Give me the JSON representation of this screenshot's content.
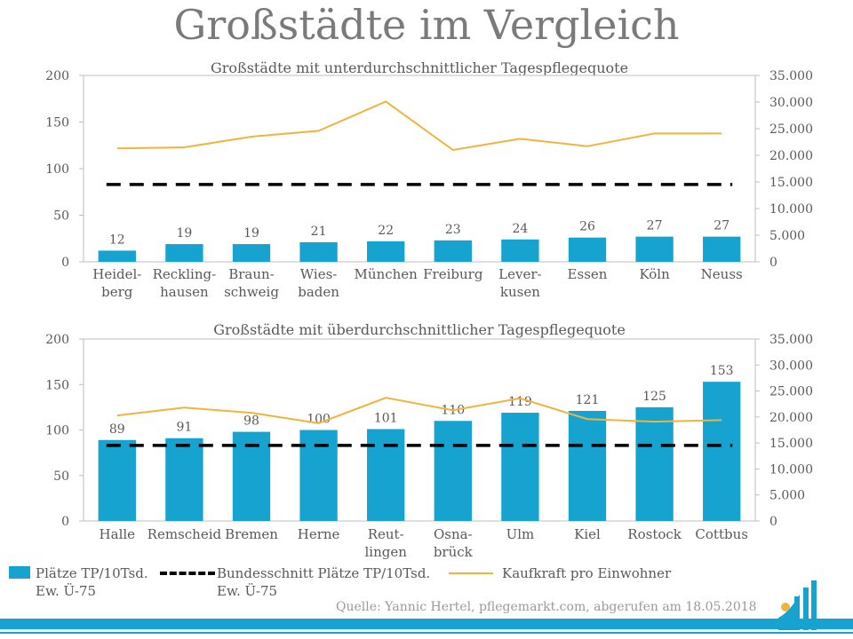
{
  "title": "Großstädte im Vergleich",
  "chart_data": [
    {
      "type": "bar",
      "title": "Großstädte mit unterdurchschnittlicher Tagespflegequote",
      "categories": [
        [
          "Heidel-",
          "berg"
        ],
        [
          "Reckling-",
          "hausen"
        ],
        [
          "Braun-",
          "schweig"
        ],
        [
          "Wies-",
          "baden"
        ],
        [
          "München"
        ],
        [
          "Freiburg"
        ],
        [
          "Lever-",
          "kusen"
        ],
        [
          "Essen"
        ],
        [
          "Köln"
        ],
        [
          "Neuss"
        ]
      ],
      "ylim": [
        0,
        200
      ],
      "yticks": [
        "0",
        "50",
        "100",
        "150",
        "200"
      ],
      "y2lim": [
        0,
        35000
      ],
      "y2ticks": [
        "0",
        "5.000",
        "10.000",
        "15.000",
        "20.000",
        "25.000",
        "30.000",
        "35.000"
      ],
      "series": [
        {
          "name": "Plätze TP/10Tsd. Ew. Ü-75",
          "kind": "bar",
          "color": "#16a3d0",
          "values": [
            12,
            19,
            19,
            21,
            22,
            23,
            24,
            26,
            27,
            27
          ]
        },
        {
          "name": "Bundesschnitt Plätze TP/10Tsd. Ew. Ü-75",
          "kind": "dashed-line",
          "color": "#000000",
          "values": [
            83,
            83,
            83,
            83,
            83,
            83,
            83,
            83,
            83,
            83
          ]
        },
        {
          "name": "Kaufkraft pro Einwohner",
          "kind": "line",
          "axis": "right",
          "color": "#f0b43c",
          "values": [
            21300,
            21500,
            23500,
            24600,
            30100,
            21000,
            23100,
            21700,
            24100,
            24100
          ]
        }
      ]
    },
    {
      "type": "bar",
      "title": "Großstädte mit überdurchschnittlicher Tagespflegequote",
      "categories": [
        [
          "Halle"
        ],
        [
          "Remscheid"
        ],
        [
          "Bremen"
        ],
        [
          "Herne"
        ],
        [
          "Reut-",
          "lingen"
        ],
        [
          "Osna-",
          "brück"
        ],
        [
          "Ulm"
        ],
        [
          "Kiel"
        ],
        [
          "Rostock"
        ],
        [
          "Cottbus"
        ]
      ],
      "ylim": [
        0,
        200
      ],
      "yticks": [
        "0",
        "50",
        "100",
        "150",
        "200"
      ],
      "y2lim": [
        0,
        35000
      ],
      "y2ticks": [
        "0",
        "5.000",
        "10.000",
        "15.000",
        "20.000",
        "25.000",
        "30.000",
        "35.000"
      ],
      "series": [
        {
          "name": "Plätze TP/10Tsd. Ew. Ü-75",
          "kind": "bar",
          "color": "#16a3d0",
          "values": [
            89,
            91,
            98,
            100,
            101,
            110,
            119,
            121,
            125,
            153
          ]
        },
        {
          "name": "Bundesschnitt Plätze TP/10Tsd. Ew. Ü-75",
          "kind": "dashed-line",
          "color": "#000000",
          "values": [
            83,
            83,
            83,
            83,
            83,
            83,
            83,
            83,
            83,
            83
          ]
        },
        {
          "name": "Kaufkraft pro Einwohner",
          "kind": "line",
          "axis": "right",
          "color": "#f0b43c",
          "values": [
            20300,
            21800,
            20800,
            18800,
            23700,
            21300,
            23600,
            19600,
            19100,
            19400
          ]
        }
      ]
    }
  ],
  "legend": {
    "bar": [
      "Plätze TP/10Tsd.",
      "Ew. Ü-75"
    ],
    "dash": [
      "Bundesschnitt Plätze TP/10Tsd.",
      "Ew. Ü-75"
    ],
    "line": "Kaufkraft pro Einwohner"
  },
  "source": "Quelle: Yannic Hertel, pflegemarkt.com, abgerufen am 18.05.2018"
}
